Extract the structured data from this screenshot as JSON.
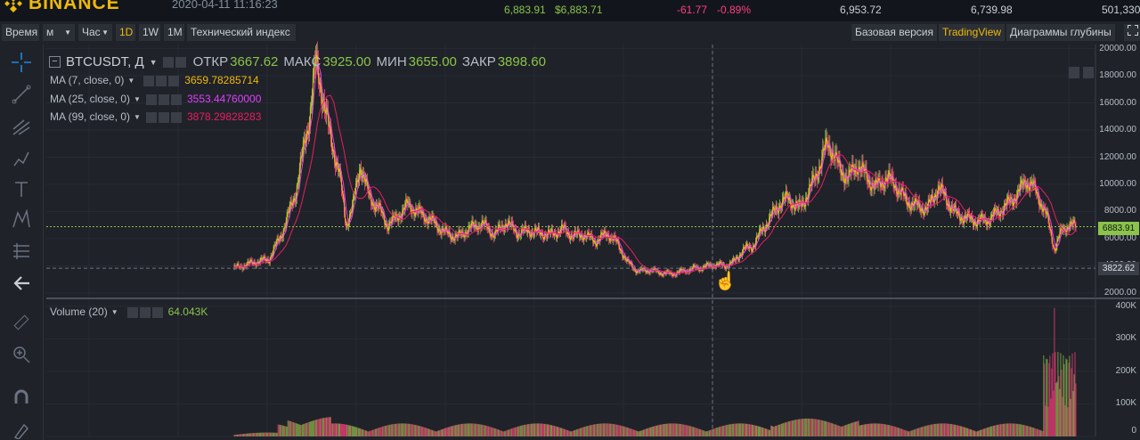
{
  "app": {
    "brand": "BINANCE",
    "datetime": "2020-04-11 11:16:23"
  },
  "ticker": {
    "last_price": "6,883.91",
    "last_price_usd": "$6,883.71",
    "change": "-61.77",
    "change_pct": "-0.89%",
    "high": "6,953.72",
    "low": "6,739.98",
    "volume": "501,330"
  },
  "toolbar": {
    "time_label": "Время",
    "unit_m": "м",
    "unit_h": "Час",
    "intervals": [
      "1D",
      "1W",
      "1M"
    ],
    "tech_index": "Технический индекс",
    "base_version": "Базовая версия",
    "tradingview": "TradingView",
    "depth": "Диаграммы глубины"
  },
  "legend": {
    "symbol": "BTCUSDT, Д",
    "open_label": "ОТКР",
    "open": "3667.62",
    "high_label": "МАКС",
    "high": "3925.00",
    "low_label": "МИН",
    "low": "3655.00",
    "close_label": "ЗАКР",
    "close": "3898.60",
    "ma": [
      {
        "label": "MA (7, close, 0)",
        "value": "3659.78285714",
        "color": "#f0b90b"
      },
      {
        "label": "MA (25, close, 0)",
        "value": "3553.44760000",
        "color": "#e040fb"
      },
      {
        "label": "MA (99, close, 0)",
        "value": "3878.29828283",
        "color": "#e91e63"
      }
    ],
    "volume_label": "Volume (20)",
    "volume_value": "64.043K"
  },
  "colors": {
    "up": "#8bc34a",
    "down": "#ff3d7f",
    "accent": "#f0b90b",
    "bg": "#1f2229"
  },
  "chart_data": [
    {
      "type": "candlestick",
      "title": "BTCUSDT, Д",
      "xlabel": "",
      "ylabel": "",
      "y_ticks": [
        2000,
        4000,
        6000,
        8000,
        10000,
        12000,
        14000,
        16000,
        18000,
        20000
      ],
      "y_tick_labels": [
        "2000.00",
        "4000.00",
        "6000.00",
        "8000.00",
        "10000.00",
        "12000.00",
        "14000.00",
        "16000.00",
        "18000.00",
        "20000.00"
      ],
      "ylim": [
        1800,
        20300
      ],
      "last_price_label": "6883.91",
      "crosshair_price_label": "3822.62",
      "approx_close_path": [
        [
          0,
          3800
        ],
        [
          20,
          4200
        ],
        [
          40,
          4500
        ],
        [
          55,
          6500
        ],
        [
          70,
          9500
        ],
        [
          85,
          15000
        ],
        [
          92,
          19000
        ],
        [
          100,
          16500
        ],
        [
          108,
          13500
        ],
        [
          118,
          11000
        ],
        [
          126,
          7000
        ],
        [
          134,
          8500
        ],
        [
          142,
          11500
        ],
        [
          152,
          9000
        ],
        [
          162,
          8300
        ],
        [
          172,
          7000
        ],
        [
          182,
          7500
        ],
        [
          195,
          8500
        ],
        [
          210,
          7800
        ],
        [
          222,
          7300
        ],
        [
          235,
          6500
        ],
        [
          250,
          6100
        ],
        [
          265,
          6800
        ],
        [
          278,
          7100
        ],
        [
          292,
          6300
        ],
        [
          305,
          7200
        ],
        [
          318,
          6400
        ],
        [
          330,
          6600
        ],
        [
          342,
          6400
        ],
        [
          355,
          6300
        ],
        [
          368,
          6700
        ],
        [
          380,
          6200
        ],
        [
          392,
          6300
        ],
        [
          405,
          5800
        ],
        [
          418,
          6400
        ],
        [
          430,
          5600
        ],
        [
          440,
          4300
        ],
        [
          452,
          3600
        ],
        [
          465,
          3700
        ],
        [
          478,
          3500
        ],
        [
          490,
          3400
        ],
        [
          502,
          3600
        ],
        [
          514,
          3800
        ],
        [
          526,
          3900
        ],
        [
          538,
          4100
        ],
        [
          550,
          4000
        ],
        [
          560,
          4300
        ],
        [
          570,
          5200
        ],
        [
          580,
          5400
        ],
        [
          590,
          6500
        ],
        [
          600,
          7500
        ],
        [
          610,
          8500
        ],
        [
          620,
          9000
        ],
        [
          632,
          8200
        ],
        [
          644,
          9500
        ],
        [
          656,
          11500
        ],
        [
          664,
          13000
        ],
        [
          670,
          12500
        ],
        [
          678,
          11000
        ],
        [
          688,
          10500
        ],
        [
          698,
          11500
        ],
        [
          708,
          10500
        ],
        [
          718,
          9800
        ],
        [
          730,
          10500
        ],
        [
          740,
          10000
        ],
        [
          752,
          8800
        ],
        [
          764,
          8400
        ],
        [
          776,
          8200
        ],
        [
          788,
          9800
        ],
        [
          798,
          8800
        ],
        [
          808,
          7800
        ],
        [
          820,
          7500
        ],
        [
          832,
          7300
        ],
        [
          844,
          7400
        ],
        [
          856,
          8000
        ],
        [
          868,
          8700
        ],
        [
          878,
          9400
        ],
        [
          886,
          10300
        ],
        [
          894,
          9800
        ],
        [
          902,
          8800
        ],
        [
          910,
          7500
        ],
        [
          918,
          5200
        ],
        [
          926,
          6600
        ],
        [
          934,
          7000
        ],
        [
          942,
          6884
        ]
      ]
    },
    {
      "type": "bar",
      "title": "Volume (20)",
      "xlabel": "",
      "ylabel": "",
      "y_ticks": [
        0,
        100000,
        200000,
        300000,
        400000
      ],
      "y_tick_labels": [
        "0",
        "100K",
        "200K",
        "300K",
        "400K"
      ],
      "ylim": [
        0,
        405000
      ],
      "last_value_label": "64.043K"
    }
  ]
}
